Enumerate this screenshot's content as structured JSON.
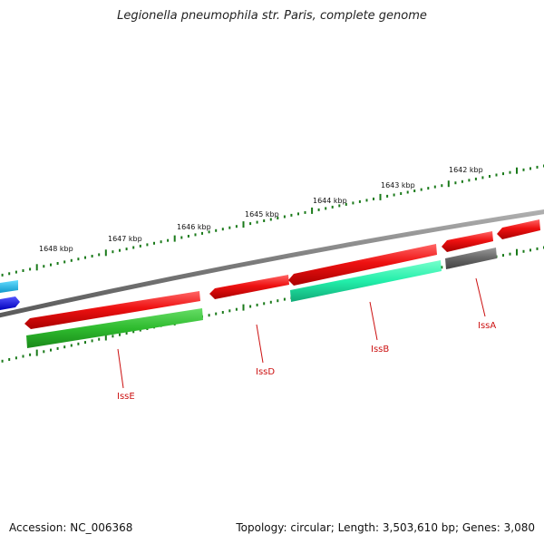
{
  "title": "Legionella pneumophila str. Paris, complete genome",
  "footer": {
    "accession": "Accession: NC_006368",
    "summary": "Topology: circular; Length: 3,503,610 bp; Genes: 3,080"
  },
  "scale_labels": [
    "1648 kbp",
    "1647 kbp",
    "1646 kbp",
    "1645 kbp",
    "1644 kbp",
    "1643 kbp",
    "1642 kbp"
  ],
  "genes": [
    {
      "label": "IssE",
      "color": "#2ecc2e"
    },
    {
      "label": "IssD",
      "color": "#ee1111"
    },
    {
      "label": "IssB",
      "color": "#22eeaa"
    },
    {
      "label": "IssA",
      "color": "#666666"
    }
  ],
  "colors": {
    "forward_cds": "#ee1111",
    "backbone": "#8a8a8a",
    "ticks": "#1a7a1a",
    "gene_label": "#cc1111",
    "blue_feature": "#1111dd",
    "cyan_feature": "#22bbee"
  }
}
